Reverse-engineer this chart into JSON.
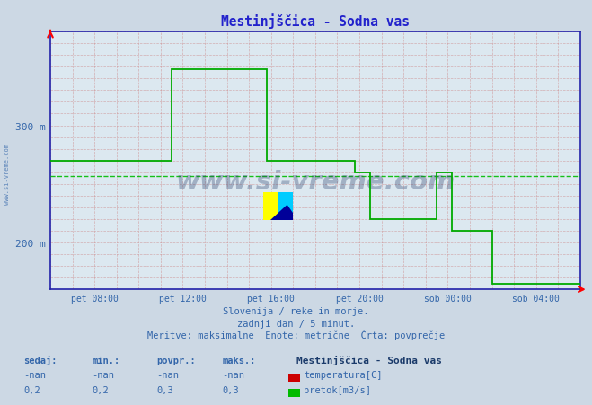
{
  "title": "Mestinjščica - Sodna vas",
  "bg_color": "#ccd8e4",
  "plot_bg_color": "#dce8f0",
  "grid_color": "#cc8888",
  "avg_line_color": "#00bb00",
  "line_color": "#00aa00",
  "axis_color": "#2222aa",
  "title_color": "#2222cc",
  "label_color": "#3366aa",
  "watermark_color": "#1a3060",
  "subtitle_lines": [
    "Slovenija / reke in morje.",
    "zadnji dan / 5 minut.",
    "Meritve: maksimalne  Enote: metrične  Črta: povprečje"
  ],
  "x_labels": [
    "pet 08:00",
    "pet 12:00",
    "pet 16:00",
    "pet 20:00",
    "sob 00:00",
    "sob 04:00"
  ],
  "x_ticks_pos": [
    2,
    6,
    10,
    14,
    18,
    22
  ],
  "xlim": [
    0,
    24
  ],
  "ylim": [
    160,
    380
  ],
  "y_ticks": [
    200,
    300
  ],
  "y_labels": [
    "200 m",
    "300 m"
  ],
  "avg_y": 257,
  "pretok_x": [
    0.0,
    5.5,
    5.5,
    9.8,
    9.8,
    13.8,
    13.8,
    14.5,
    14.5,
    17.5,
    17.5,
    18.2,
    18.2,
    20.0,
    20.0,
    24.0
  ],
  "pretok_y": [
    270,
    270,
    348,
    348,
    270,
    270,
    260,
    260,
    220,
    220,
    260,
    260,
    210,
    210,
    165,
    165
  ],
  "legend_station": "Mestinjščica - Sodna vas",
  "legend_temp_label": "temperatura[C]",
  "legend_pretok_label": "pretok[m3/s]",
  "legend_temp_color": "#cc0000",
  "legend_pretok_color": "#00bb00",
  "bottom_labels": {
    "temp_sedaj": "-nan",
    "temp_min": "-nan",
    "temp_povpr": "-nan",
    "temp_maks": "-nan",
    "pretok_sedaj": "0,2",
    "pretok_min": "0,2",
    "pretok_povpr": "0,3",
    "pretok_maks": "0,3"
  },
  "watermark": "www.si-vreme.com",
  "side_text": "www.si-vreme.com"
}
